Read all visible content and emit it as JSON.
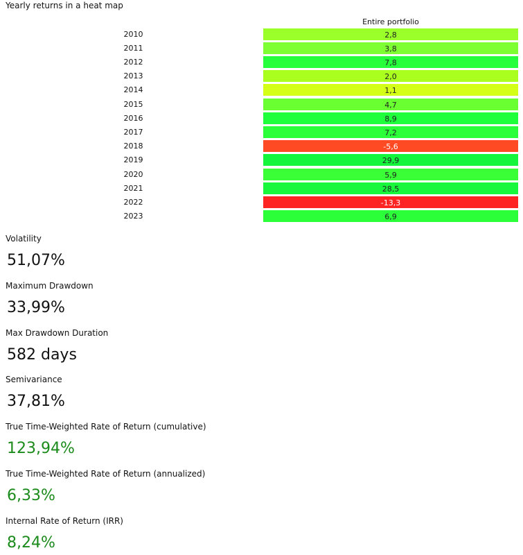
{
  "heatmap": {
    "title": "Yearly returns in a heat map",
    "column_header": "Entire portfolio",
    "rows": [
      {
        "year": "2010",
        "value": "2,8",
        "color": "#9bff2a"
      },
      {
        "year": "2011",
        "value": "3,8",
        "color": "#7dff33"
      },
      {
        "year": "2012",
        "value": "7,8",
        "color": "#25ff3c"
      },
      {
        "year": "2013",
        "value": "2,0",
        "color": "#aaff1e"
      },
      {
        "year": "2014",
        "value": "1,1",
        "color": "#d4ff16"
      },
      {
        "year": "2015",
        "value": "4,7",
        "color": "#6aff31"
      },
      {
        "year": "2016",
        "value": "8,9",
        "color": "#1fff3c"
      },
      {
        "year": "2017",
        "value": "7,2",
        "color": "#2aff3a"
      },
      {
        "year": "2018",
        "value": "-5,6",
        "color": "#ff4a24"
      },
      {
        "year": "2019",
        "value": "29,9",
        "color": "#14f53c"
      },
      {
        "year": "2020",
        "value": "5,9",
        "color": "#3aff36"
      },
      {
        "year": "2021",
        "value": "28,5",
        "color": "#18f73c"
      },
      {
        "year": "2022",
        "value": "-13,3",
        "color": "#ff2424"
      },
      {
        "year": "2023",
        "value": "6,9",
        "color": "#2bff39"
      }
    ]
  },
  "metrics": [
    {
      "label": "Volatility",
      "value": "51,07%",
      "color": "#111111"
    },
    {
      "label": "Maximum Drawdown",
      "value": "33,99%",
      "color": "#111111"
    },
    {
      "label": "Max Drawdown Duration",
      "value": "582 days",
      "color": "#111111"
    },
    {
      "label": "Semivariance",
      "value": "37,81%",
      "color": "#111111"
    },
    {
      "label": "True Time-Weighted Rate of Return (cumulative)",
      "value": "123,94%",
      "color": "#1a8a1a"
    },
    {
      "label": "True Time-Weighted Rate of Return (annualized)",
      "value": "6,33%",
      "color": "#1a8a1a"
    },
    {
      "label": "Internal Rate of Return (IRR)",
      "value": "8,24%",
      "color": "#1a8a1a"
    }
  ]
}
